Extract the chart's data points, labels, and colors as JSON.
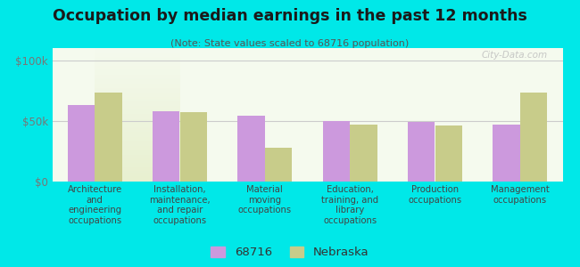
{
  "title": "Occupation by median earnings in the past 12 months",
  "subtitle": "(Note: State values scaled to 68716 population)",
  "background_color": "#00e8e8",
  "plot_bg_gradient_top": "#f5faee",
  "plot_bg_gradient_bottom": "#e8f0d0",
  "categories": [
    "Architecture\nand\nengineering\noccupations",
    "Installation,\nmaintenance,\nand repair\noccupations",
    "Material\nmoving\noccupations",
    "Education,\ntraining, and\nlibrary\noccupations",
    "Production\noccupations",
    "Management\noccupations"
  ],
  "values_68716": [
    63000,
    58000,
    54000,
    50000,
    49000,
    47000
  ],
  "values_nebraska": [
    73000,
    57000,
    28000,
    47000,
    46000,
    73000
  ],
  "color_68716": "#cc99dd",
  "color_nebraska": "#c8cc8a",
  "ylim": [
    0,
    110000
  ],
  "yticks": [
    0,
    50000,
    100000
  ],
  "ytick_labels": [
    "$0",
    "$50k",
    "$100k"
  ],
  "legend_label_68716": "68716",
  "legend_label_nebraska": "Nebraska",
  "bar_width": 0.32,
  "watermark": "City-Data.com"
}
